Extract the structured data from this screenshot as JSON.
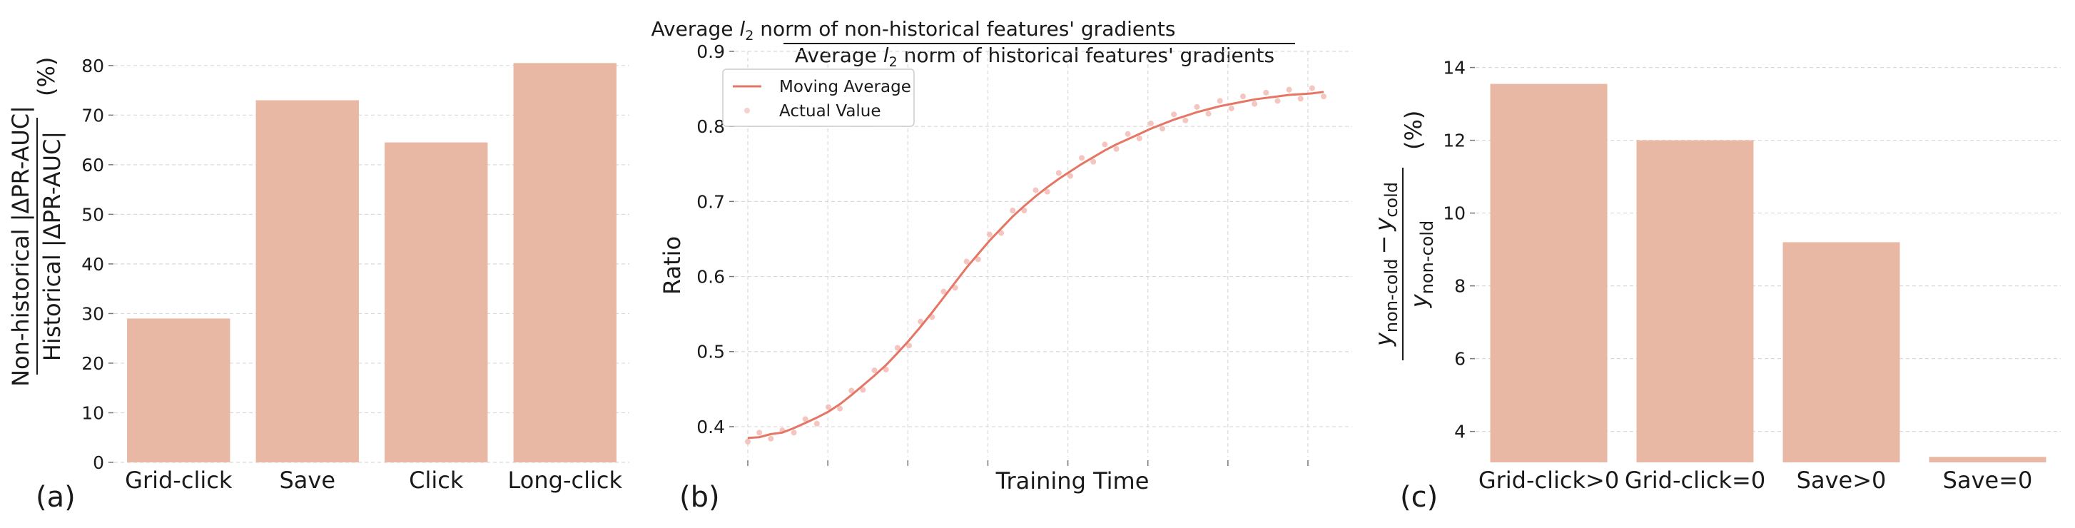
{
  "colors": {
    "bar": "#e9b8a4",
    "line": "#e57565",
    "points": "#f2b2aa",
    "grid": "#d9d9d9",
    "text": "#1a1a1a"
  },
  "panels": {
    "a": "(a)",
    "b": "(b)",
    "c": "(c)"
  },
  "chart_a_ylabel": {
    "num": "Non-historical |ΔPR-AUC|",
    "den": "Historical |ΔPR-AUC|",
    "unit": "(%)"
  },
  "chart_b_title": {
    "num_pre": "Average ",
    "num_post": " norm of non-historical features' gradients",
    "den_pre": "Average ",
    "den_post": " norm of historical features' gradients",
    "l": "l",
    "sub": "2"
  },
  "chart_c_ylabel": {
    "num_a": "y",
    "num_a_sub": "non-cold",
    "minus": "−",
    "num_b": "y",
    "num_b_sub": "cold",
    "den": "y",
    "den_sub": "non-cold",
    "unit": "(%)"
  },
  "chart_data": [
    {
      "type": "bar",
      "categories": [
        "Grid-click",
        "Save",
        "Click",
        "Long-click"
      ],
      "values": [
        29,
        73,
        64.5,
        80.5
      ],
      "ylim": [
        0,
        84
      ],
      "yticks": [
        0,
        10,
        20,
        30,
        40,
        50,
        60,
        70,
        80
      ],
      "grid": "horizontal",
      "ylabel": "Non-historical |ΔPR-AUC| / Historical |ΔPR-AUC| (%)"
    },
    {
      "type": "line",
      "xlabel": "Training Time",
      "ylabel": "Ratio",
      "ylim": [
        0.36,
        0.9
      ],
      "yticks": [
        0.4,
        0.5,
        0.6,
        0.7,
        0.8,
        0.9
      ],
      "x_tick_count": 8,
      "xlim": [
        0,
        100
      ],
      "grid": "both",
      "legend_position": "top-left",
      "series": [
        {
          "name": "Moving Average",
          "kind": "line",
          "x": [
            0,
            2,
            4,
            6,
            8,
            10,
            12,
            14,
            16,
            18,
            20,
            22,
            24,
            26,
            28,
            30,
            32,
            34,
            36,
            38,
            40,
            42,
            44,
            46,
            48,
            50,
            52,
            54,
            56,
            58,
            60,
            62,
            64,
            66,
            68,
            70,
            72,
            74,
            76,
            78,
            80,
            82,
            84,
            86,
            88,
            90,
            92,
            94,
            96,
            98,
            100
          ],
          "values": [
            0.385,
            0.386,
            0.39,
            0.392,
            0.398,
            0.405,
            0.412,
            0.42,
            0.43,
            0.442,
            0.455,
            0.468,
            0.482,
            0.498,
            0.515,
            0.533,
            0.552,
            0.572,
            0.592,
            0.612,
            0.63,
            0.648,
            0.664,
            0.68,
            0.694,
            0.707,
            0.719,
            0.73,
            0.74,
            0.75,
            0.759,
            0.768,
            0.776,
            0.783,
            0.79,
            0.797,
            0.803,
            0.809,
            0.814,
            0.819,
            0.823,
            0.827,
            0.83,
            0.833,
            0.836,
            0.838,
            0.84,
            0.842,
            0.843,
            0.844,
            0.846
          ]
        },
        {
          "name": "Actual Value",
          "kind": "scatter",
          "x": [
            0,
            2,
            4,
            6,
            8,
            10,
            12,
            14,
            16,
            18,
            20,
            22,
            24,
            26,
            28,
            30,
            32,
            34,
            36,
            38,
            40,
            42,
            44,
            46,
            48,
            50,
            52,
            54,
            56,
            58,
            60,
            62,
            64,
            66,
            68,
            70,
            72,
            74,
            76,
            78,
            80,
            82,
            84,
            86,
            88,
            90,
            92,
            94,
            96,
            98,
            100
          ],
          "values": [
            0.38,
            0.392,
            0.384,
            0.395,
            0.392,
            0.41,
            0.404,
            0.426,
            0.424,
            0.448,
            0.449,
            0.475,
            0.476,
            0.505,
            0.508,
            0.54,
            0.546,
            0.58,
            0.585,
            0.62,
            0.623,
            0.656,
            0.658,
            0.688,
            0.688,
            0.715,
            0.713,
            0.738,
            0.734,
            0.758,
            0.753,
            0.776,
            0.77,
            0.79,
            0.784,
            0.804,
            0.797,
            0.816,
            0.808,
            0.826,
            0.817,
            0.834,
            0.824,
            0.84,
            0.83,
            0.845,
            0.834,
            0.849,
            0.837,
            0.851,
            0.84
          ]
        }
      ]
    },
    {
      "type": "bar",
      "categories": [
        "Grid-click>0",
        "Grid-click=0",
        "Save>0",
        "Save=0"
      ],
      "values": [
        13.55,
        12.0,
        9.2,
        3.3
      ],
      "ylim": [
        3.15,
        14.6
      ],
      "yticks": [
        4,
        6,
        8,
        10,
        12,
        14
      ],
      "grid": "horizontal"
    }
  ],
  "texts": {
    "a_ticks": [
      "0",
      "10",
      "20",
      "30",
      "40",
      "50",
      "60",
      "70",
      "80"
    ],
    "a_cats": [
      "Grid-click",
      "Save",
      "Click",
      "Long-click"
    ],
    "b_ticks": [
      "0.4",
      "0.5",
      "0.6",
      "0.7",
      "0.8",
      "0.9"
    ],
    "b_xlabel": "Training Time",
    "b_ylabel": "Ratio",
    "b_legend": [
      "Moving Average",
      "Actual Value"
    ],
    "c_ticks": [
      "4",
      "6",
      "8",
      "10",
      "12",
      "14"
    ],
    "c_cats": [
      "Grid-click>0",
      "Grid-click=0",
      "Save>0",
      "Save=0"
    ]
  }
}
